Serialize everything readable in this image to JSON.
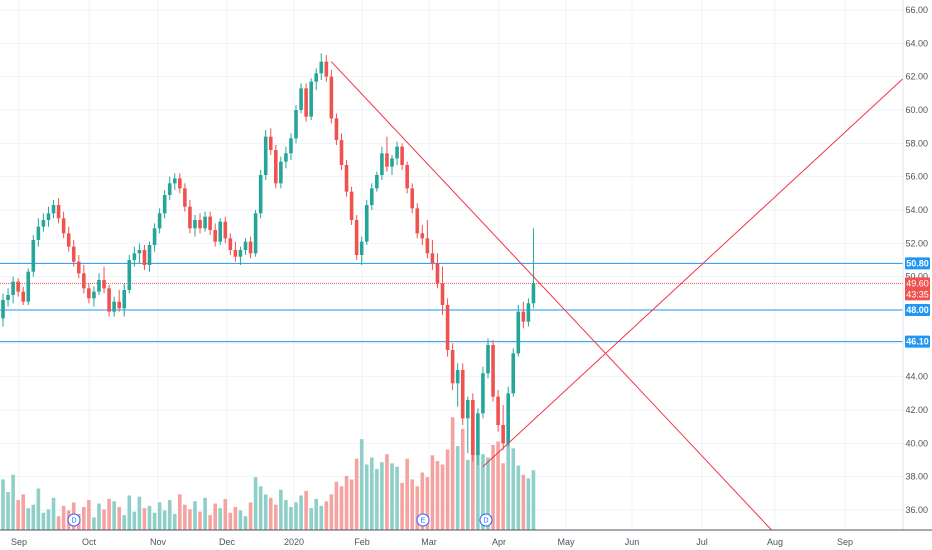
{
  "colors": {
    "up": "#26a69a",
    "down": "#ef5350",
    "up_volume": "#8ecfc8",
    "down_volume": "#f5a3a1",
    "level_line": "#2196f3",
    "trend_line": "#f23645",
    "grid": "#f0f3fa",
    "axis_text": "#50535e"
  },
  "chart_data": {
    "type": "candlestick",
    "title": "",
    "ylabel": "",
    "ylim": [
      34.8,
      66.6
    ],
    "y_ticks": [
      "66.00",
      "64.00",
      "62.00",
      "60.00",
      "58.00",
      "56.00",
      "54.00",
      "52.00",
      "50.00",
      "48.00",
      "46.00",
      "44.00",
      "42.00",
      "40.00",
      "38.00",
      "36.00"
    ],
    "x_ticks": [
      "Sep",
      "Oct",
      "Nov",
      "Dec",
      "2020",
      "Feb",
      "Mar",
      "Apr",
      "May",
      "Jun",
      "Jul",
      "Aug",
      "Sep"
    ],
    "grid": true,
    "last_price": "49.60",
    "countdown": "43:35",
    "horizontal_levels": [
      {
        "value": 50.8,
        "label": "50.80"
      },
      {
        "value": 48.0,
        "label": "48.00"
      },
      {
        "value": 46.1,
        "label": "46.10"
      }
    ],
    "price_line": 49.6,
    "trend_lines": [
      {
        "from": [
          "2020-01-20",
          62.9
        ],
        "to": [
          "2020-04-10",
          50.0
        ],
        "extends_right": true
      },
      {
        "from": [
          "2020-03-20",
          38.6
        ],
        "to": [
          "2020-04-10",
          41.4
        ],
        "extends_right": true
      }
    ],
    "events": [
      {
        "date": "Oct",
        "label": "D"
      },
      {
        "date": "Mar",
        "label": "E"
      },
      {
        "date": "Apr",
        "label": "D"
      }
    ],
    "series": [
      {
        "name": "",
        "values": [
          [
            47.5,
            49.0,
            47.0,
            48.6
          ],
          [
            48.6,
            49.3,
            48.2,
            48.9
          ],
          [
            48.9,
            50.0,
            48.4,
            49.7
          ],
          [
            49.7,
            49.9,
            48.8,
            49.1
          ],
          [
            49.1,
            49.4,
            48.3,
            48.5
          ],
          [
            48.5,
            50.5,
            48.3,
            50.3
          ],
          [
            50.3,
            52.5,
            50.0,
            52.2
          ],
          [
            52.2,
            53.5,
            51.8,
            53.0
          ],
          [
            53.0,
            53.8,
            52.7,
            53.4
          ],
          [
            53.4,
            54.2,
            53.0,
            53.8
          ],
          [
            53.8,
            54.6,
            53.5,
            54.3
          ],
          [
            54.3,
            54.7,
            53.2,
            53.5
          ],
          [
            53.5,
            53.9,
            52.3,
            52.6
          ],
          [
            52.6,
            53.0,
            51.5,
            51.8
          ],
          [
            51.8,
            52.2,
            50.6,
            50.9
          ],
          [
            50.9,
            51.3,
            49.9,
            50.2
          ],
          [
            50.2,
            50.7,
            49.0,
            49.3
          ],
          [
            49.3,
            49.6,
            48.4,
            48.7
          ],
          [
            48.7,
            49.4,
            48.2,
            49.1
          ],
          [
            49.1,
            50.2,
            48.9,
            49.8
          ],
          [
            49.8,
            50.6,
            49.0,
            49.3
          ],
          [
            49.3,
            49.5,
            47.6,
            47.9
          ],
          [
            47.9,
            48.8,
            47.6,
            48.5
          ],
          [
            48.5,
            49.2,
            47.9,
            48.1
          ],
          [
            48.1,
            49.6,
            47.6,
            49.2
          ],
          [
            49.2,
            51.3,
            49.0,
            51.0
          ],
          [
            51.0,
            51.8,
            50.6,
            51.4
          ],
          [
            51.4,
            52.0,
            50.8,
            51.6
          ],
          [
            51.6,
            51.9,
            50.4,
            50.7
          ],
          [
            50.7,
            52.1,
            50.3,
            51.9
          ],
          [
            51.9,
            53.2,
            51.5,
            52.9
          ],
          [
            52.9,
            54.1,
            52.6,
            53.8
          ],
          [
            53.8,
            55.2,
            53.5,
            54.9
          ],
          [
            54.9,
            56.0,
            54.6,
            55.6
          ],
          [
            55.6,
            56.2,
            55.2,
            55.9
          ],
          [
            55.9,
            56.2,
            55.0,
            55.3
          ],
          [
            55.3,
            55.6,
            53.9,
            54.2
          ],
          [
            54.2,
            54.6,
            52.6,
            52.9
          ],
          [
            52.9,
            53.7,
            52.4,
            53.4
          ],
          [
            53.4,
            53.8,
            52.6,
            52.9
          ],
          [
            52.9,
            53.9,
            52.7,
            53.6
          ],
          [
            53.6,
            53.9,
            52.5,
            52.8
          ],
          [
            52.8,
            53.2,
            51.8,
            52.1
          ],
          [
            52.1,
            53.5,
            51.9,
            53.3
          ],
          [
            53.3,
            53.6,
            52.0,
            52.3
          ],
          [
            52.3,
            52.6,
            51.3,
            51.6
          ],
          [
            51.6,
            52.1,
            50.9,
            51.2
          ],
          [
            51.2,
            51.8,
            50.7,
            51.6
          ],
          [
            51.6,
            52.3,
            51.3,
            52.1
          ],
          [
            52.1,
            52.4,
            51.1,
            51.4
          ],
          [
            51.4,
            54.0,
            51.2,
            53.8
          ],
          [
            53.8,
            56.4,
            53.5,
            56.1
          ],
          [
            56.1,
            58.8,
            55.8,
            58.4
          ],
          [
            58.4,
            58.9,
            57.3,
            57.6
          ],
          [
            57.6,
            57.9,
            55.3,
            55.6
          ],
          [
            55.6,
            57.2,
            55.3,
            56.9
          ],
          [
            56.9,
            57.8,
            56.5,
            57.4
          ],
          [
            57.4,
            58.6,
            57.0,
            58.3
          ],
          [
            58.3,
            60.3,
            58.0,
            60.0
          ],
          [
            60.0,
            61.6,
            59.8,
            61.3
          ],
          [
            61.3,
            61.6,
            59.3,
            59.6
          ],
          [
            59.6,
            61.9,
            59.4,
            61.7
          ],
          [
            61.7,
            62.5,
            61.2,
            62.2
          ],
          [
            62.2,
            63.4,
            61.8,
            62.9
          ],
          [
            62.9,
            63.3,
            61.7,
            62.0
          ],
          [
            62.0,
            62.4,
            59.2,
            59.5
          ],
          [
            59.5,
            59.8,
            57.9,
            58.2
          ],
          [
            58.2,
            58.6,
            56.4,
            56.7
          ],
          [
            56.7,
            57.0,
            54.8,
            55.1
          ],
          [
            55.1,
            55.4,
            53.1,
            53.4
          ],
          [
            53.4,
            53.7,
            51.0,
            51.3
          ],
          [
            51.3,
            52.4,
            50.7,
            52.1
          ],
          [
            52.1,
            54.6,
            51.9,
            54.3
          ],
          [
            54.3,
            55.6,
            54.0,
            55.3
          ],
          [
            55.3,
            56.3,
            55.1,
            56.1
          ],
          [
            56.1,
            57.8,
            55.8,
            57.4
          ],
          [
            57.4,
            58.4,
            56.3,
            56.6
          ],
          [
            56.6,
            57.3,
            56.1,
            57.1
          ],
          [
            57.1,
            58.1,
            56.7,
            57.8
          ],
          [
            57.8,
            58.0,
            56.4,
            56.7
          ],
          [
            56.7,
            56.9,
            55.0,
            55.3
          ],
          [
            55.3,
            55.6,
            53.8,
            54.1
          ],
          [
            54.1,
            54.4,
            52.3,
            52.6
          ],
          [
            52.6,
            53.1,
            51.9,
            52.3
          ],
          [
            52.3,
            53.4,
            51.1,
            51.4
          ],
          [
            51.4,
            52.2,
            50.4,
            50.8
          ],
          [
            50.8,
            51.4,
            49.3,
            49.6
          ],
          [
            49.6,
            50.6,
            47.7,
            48.3
          ],
          [
            48.3,
            48.7,
            45.2,
            45.6
          ],
          [
            45.6,
            46.0,
            43.2,
            43.6
          ],
          [
            43.6,
            44.8,
            42.2,
            44.4
          ],
          [
            44.4,
            44.8,
            41.1,
            41.5
          ],
          [
            41.5,
            42.8,
            39.4,
            42.6
          ],
          [
            42.6,
            43.0,
            38.9,
            39.3
          ],
          [
            39.3,
            42.1,
            38.7,
            41.8
          ],
          [
            41.8,
            44.6,
            41.5,
            44.2
          ],
          [
            44.2,
            46.3,
            43.9,
            45.9
          ],
          [
            45.9,
            46.2,
            42.5,
            42.8
          ],
          [
            42.8,
            43.2,
            40.7,
            41.1
          ],
          [
            41.1,
            42.3,
            39.6,
            40.0
          ],
          [
            40.0,
            43.4,
            39.8,
            43.0
          ],
          [
            43.0,
            45.7,
            42.8,
            45.4
          ],
          [
            45.4,
            48.3,
            45.2,
            47.9
          ],
          [
            47.9,
            48.5,
            46.9,
            47.3
          ],
          [
            47.3,
            48.7,
            47.0,
            48.4
          ],
          [
            48.4,
            52.9,
            48.1,
            49.6
          ]
        ]
      },
      {
        "name": "Volume",
        "values": [
          0.44,
          0.33,
          0.48,
          0.26,
          0.31,
          0.19,
          0.22,
          0.36,
          0.15,
          0.18,
          0.28,
          0.12,
          0.21,
          0.17,
          0.24,
          0.14,
          0.2,
          0.26,
          0.11,
          0.23,
          0.18,
          0.27,
          0.25,
          0.2,
          0.13,
          0.3,
          0.16,
          0.29,
          0.19,
          0.21,
          0.15,
          0.24,
          0.17,
          0.26,
          0.14,
          0.31,
          0.22,
          0.18,
          0.25,
          0.16,
          0.28,
          0.13,
          0.23,
          0.19,
          0.27,
          0.15,
          0.2,
          0.17,
          0.12,
          0.24,
          0.46,
          0.38,
          0.31,
          0.28,
          0.22,
          0.35,
          0.26,
          0.2,
          0.24,
          0.3,
          0.34,
          0.19,
          0.27,
          0.21,
          0.25,
          0.31,
          0.42,
          0.38,
          0.47,
          0.44,
          0.62,
          0.79,
          0.57,
          0.63,
          0.53,
          0.59,
          0.66,
          0.58,
          0.55,
          0.41,
          0.62,
          0.44,
          0.38,
          0.5,
          0.46,
          0.65,
          0.6,
          0.57,
          0.7,
          0.98,
          0.73,
          0.88,
          0.61,
          0.82,
          0.69,
          0.66,
          0.63,
          0.74,
          0.77,
          0.58,
          0.92,
          0.71,
          0.56,
          0.48,
          0.45,
          0.52,
          0.5
        ]
      }
    ]
  }
}
